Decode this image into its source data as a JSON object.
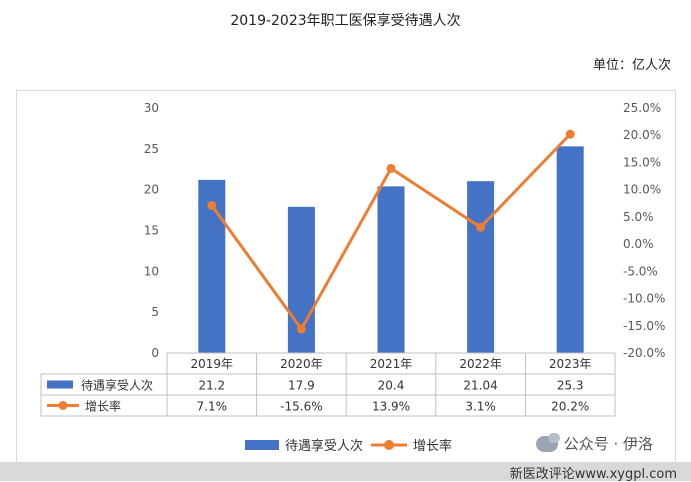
{
  "page": {
    "title": "2019-2023年职工医保享受待遇人次",
    "unit_label": "单位：亿人次",
    "watermark": "公众号 · 伊洛",
    "footer_site": "新医改评论www.xygpl.com"
  },
  "colors": {
    "bar": "#4472C4",
    "line": "#ED7D31"
  },
  "chart_data": {
    "type": "bar",
    "categories": [
      "2019年",
      "2020年",
      "2021年",
      "2022年",
      "2023年"
    ],
    "series": [
      {
        "name": "待遇享受人次",
        "type": "bar",
        "axis": "left",
        "values": [
          21.2,
          17.9,
          20.4,
          21.04,
          25.3
        ],
        "labels": [
          "21.2",
          "17.9",
          "20.4",
          "21.04",
          "25.3"
        ]
      },
      {
        "name": "增长率",
        "type": "line",
        "axis": "right",
        "values": [
          7.1,
          -15.6,
          13.9,
          3.1,
          20.2
        ],
        "labels": [
          "7.1%",
          "-15.6%",
          "13.9%",
          "3.1%",
          "20.2%"
        ]
      }
    ],
    "y_left": {
      "ticks": [
        "30",
        "25",
        "20",
        "15",
        "10",
        "5",
        "0"
      ],
      "ylim": [
        0,
        30
      ]
    },
    "y_right": {
      "ticks": [
        "25.0%",
        "20.0%",
        "15.0%",
        "10.0%",
        "5.0%",
        "0.0%",
        "-5.0%",
        "-10.0%",
        "-15.0%",
        "-20.0%"
      ],
      "ylim": [
        -20,
        25
      ]
    },
    "data_table": true,
    "legend_position": "bottom",
    "grid": false
  }
}
